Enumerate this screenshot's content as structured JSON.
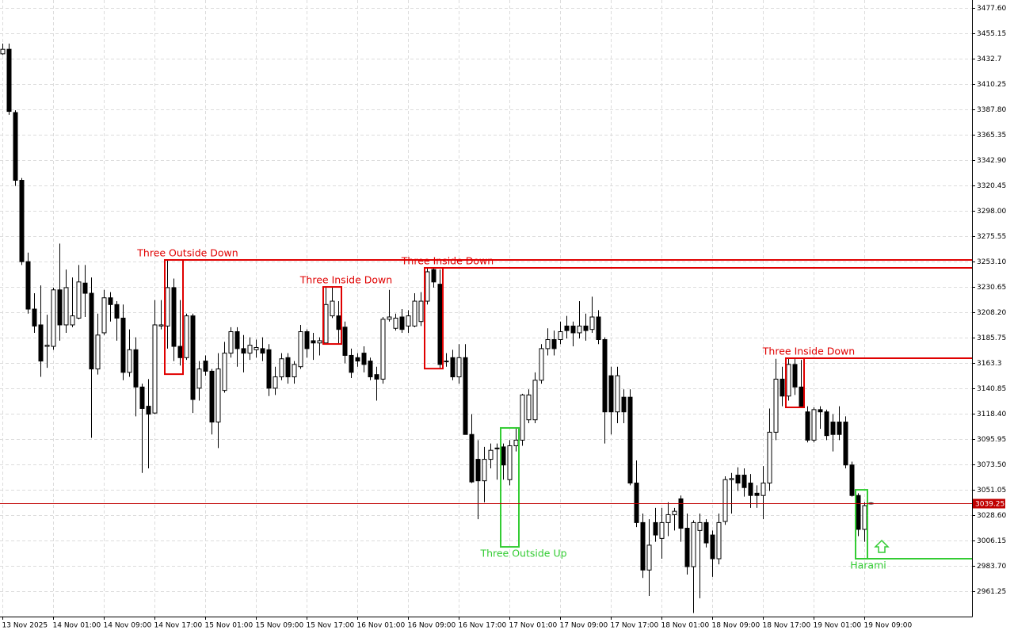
{
  "chart_data": {
    "type": "candlestick",
    "categories": [
      "13 Nov 2025",
      null,
      null,
      null,
      null,
      null,
      null,
      null,
      "14 Nov 01:00",
      null,
      null,
      null,
      null,
      null,
      null,
      null,
      "14 Nov 09:00",
      null,
      null,
      null,
      null,
      null,
      null,
      null,
      "14 Nov 17:00",
      null,
      null,
      null,
      null,
      null,
      null,
      null,
      "15 Nov 01:00",
      null,
      null,
      null,
      null,
      null,
      null,
      null,
      "15 Nov 09:00",
      null,
      null,
      null,
      null,
      null,
      null,
      null,
      "15 Nov 17:00",
      null,
      null,
      null,
      null,
      null,
      null,
      null,
      "16 Nov 01:00",
      null,
      null,
      null,
      null,
      null,
      null,
      null,
      "16 Nov 09:00",
      null,
      null,
      null,
      null,
      null,
      null,
      null,
      "16 Nov 17:00",
      null,
      null,
      null,
      null,
      null,
      null,
      null,
      "17 Nov 01:00",
      null,
      null,
      null,
      null,
      null,
      null,
      null,
      "17 Nov 09:00",
      null,
      null,
      null,
      null,
      null,
      null,
      null,
      "17 Nov 17:00",
      null,
      null,
      null,
      null,
      null,
      null,
      null,
      "18 Nov 01:00",
      null,
      null,
      null,
      null,
      null,
      null,
      null,
      "18 Nov 09:00",
      null,
      null,
      null,
      null,
      null,
      null,
      null,
      "18 Nov 17:00",
      null,
      null,
      null,
      null,
      null,
      null,
      null,
      "19 Nov 01:00",
      null,
      null,
      null,
      null,
      null,
      null,
      null,
      "19 Nov 09:00",
      null
    ],
    "open": [
      3437,
      3441,
      3385,
      3325,
      3253,
      3211,
      3197,
      3178,
      3178,
      3228,
      3197,
      3197,
      3203,
      3234,
      3225,
      3158,
      3190,
      3221,
      3215,
      3203,
      3155,
      3175,
      3142,
      3125,
      3119,
      3196,
      3196,
      3230,
      3178,
      3168,
      3205,
      3141,
      3165,
      3156,
      3111,
      3139,
      3172,
      3191,
      3176,
      3172,
      3175,
      3176,
      3175,
      3141,
      3151,
      3168,
      3151,
      3160,
      3191,
      3183,
      3181,
      3181,
      3205,
      3205,
      3195,
      3170,
      3168,
      3172,
      3165,
      3153,
      3149,
      3202,
      3194,
      3204,
      3196,
      3196,
      3200,
      3218,
      3246,
      3233,
      3165,
      3168,
      3151,
      3168,
      3100,
      3078,
      3059,
      3078,
      3088,
      3089,
      3060,
      3090,
      3095,
      3113,
      3113,
      3148,
      3176,
      3184,
      3184,
      3196,
      3196,
      3190,
      3196,
      3193,
      3204,
      3184,
      3152,
      3120,
      3133,
      3133,
      3057,
      3022,
      2980,
      3022,
      3008,
      3022,
      3029,
      3043,
      3017,
      2983,
      3015,
      3022,
      3011,
      2990,
      3023,
      3060,
      3064,
      3064,
      3057,
      3048,
      3046,
      3057,
      3102,
      3149,
      3134,
      3162,
      3142,
      3120,
      3095,
      3122,
      3120,
      3111,
      3111,
      3111,
      3073,
      3046,
      3016,
      3039
    ],
    "high": [
      3446,
      3446,
      3387,
      3327,
      3261,
      3225,
      3232,
      3206,
      3230,
      3269,
      3246,
      3239,
      3250,
      3250,
      3239,
      3207,
      3228,
      3226,
      3218,
      3215,
      3193,
      3186,
      3145,
      3149,
      3219,
      3219,
      3254,
      3238,
      3219,
      3207,
      3207,
      3165,
      3170,
      3158,
      3172,
      3182,
      3195,
      3195,
      3188,
      3186,
      3184,
      3186,
      3180,
      3160,
      3172,
      3172,
      3165,
      3197,
      3193,
      3190,
      3186,
      3230,
      3230,
      3218,
      3200,
      3176,
      3172,
      3178,
      3168,
      3160,
      3204,
      3228,
      3207,
      3211,
      3210,
      3225,
      3226,
      3247,
      3248,
      3246,
      3172,
      3175,
      3180,
      3180,
      3118,
      3095,
      3089,
      3092,
      3092,
      3092,
      3095,
      3106,
      3136,
      3140,
      3155,
      3180,
      3194,
      3192,
      3200,
      3205,
      3200,
      3218,
      3207,
      3222,
      3210,
      3186,
      3160,
      3160,
      3140,
      3140,
      3077,
      3030,
      3025,
      3035,
      3035,
      3040,
      3035,
      3046,
      3030,
      3024,
      3030,
      3025,
      3015,
      3030,
      3063,
      3066,
      3071,
      3070,
      3065,
      3055,
      3072,
      3123,
      3167,
      3160,
      3168,
      3168,
      3166,
      3125,
      3124,
      3125,
      3122,
      3118,
      3125,
      3116,
      3076,
      3048,
      3040,
      3040
    ],
    "low": [
      3436,
      3383,
      3320,
      3250,
      3207,
      3190,
      3151,
      3159,
      3175,
      3183,
      3190,
      3195,
      3202,
      3204,
      3097,
      3153,
      3188,
      3200,
      3183,
      3148,
      3151,
      3116,
      3066,
      3070,
      3118,
      3193,
      3176,
      3165,
      3161,
      3166,
      3119,
      3130,
      3152,
      3100,
      3088,
      3137,
      3168,
      3160,
      3155,
      3166,
      3168,
      3165,
      3134,
      3135,
      3148,
      3145,
      3145,
      3158,
      3168,
      3166,
      3170,
      3180,
      3203,
      3180,
      3163,
      3150,
      3160,
      3155,
      3148,
      3130,
      3145,
      3200,
      3192,
      3190,
      3190,
      3195,
      3196,
      3215,
      3230,
      3158,
      3160,
      3148,
      3145,
      3100,
      3057,
      3025,
      3040,
      3070,
      3060,
      3060,
      3055,
      3085,
      3090,
      3110,
      3110,
      3145,
      3170,
      3170,
      3180,
      3185,
      3178,
      3185,
      3183,
      3190,
      3180,
      3092,
      3100,
      3110,
      3110,
      3055,
      3018,
      2973,
      2957,
      3005,
      2990,
      3010,
      3015,
      3005,
      2976,
      2942,
      2955,
      3000,
      2974,
      2985,
      3020,
      3030,
      3050,
      3045,
      3035,
      3035,
      3025,
      3050,
      3095,
      3125,
      3130,
      3135,
      3124,
      3093,
      3093,
      3105,
      3095,
      3085,
      3095,
      3070,
      3045,
      3010,
      3005,
      3038
    ],
    "close": [
      3441,
      3386,
      3325,
      3253,
      3211,
      3196,
      3165,
      3179,
      3228,
      3197,
      3230,
      3205,
      3235,
      3225,
      3158,
      3188,
      3221,
      3215,
      3203,
      3155,
      3175,
      3142,
      3123,
      3118,
      3197,
      3197,
      3230,
      3178,
      3168,
      3205,
      3131,
      3158,
      3156,
      3111,
      3158,
      3172,
      3191,
      3176,
      3172,
      3179,
      3177,
      3172,
      3141,
      3151,
      3167,
      3151,
      3162,
      3191,
      3176,
      3181,
      3183,
      3215,
      3218,
      3193,
      3170,
      3155,
      3165,
      3162,
      3151,
      3149,
      3202,
      3204,
      3203,
      3193,
      3205,
      3218,
      3218,
      3244,
      3235,
      3162,
      3165,
      3151,
      3168,
      3100,
      3058,
      3059,
      3078,
      3086,
      3088,
      3073,
      3090,
      3095,
      3135,
      3135,
      3148,
      3176,
      3184,
      3176,
      3191,
      3192,
      3190,
      3196,
      3192,
      3204,
      3184,
      3120,
      3120,
      3152,
      3120,
      3057,
      3022,
      2980,
      3002,
      3011,
      3022,
      3029,
      3032,
      3017,
      2983,
      3022,
      3022,
      3004,
      2990,
      3022,
      3060,
      3061,
      3057,
      3053,
      3046,
      3046,
      3057,
      3102,
      3149,
      3134,
      3162,
      3142,
      3125,
      3095,
      3122,
      3120,
      3099,
      3100,
      3100,
      3073,
      3046,
      3016,
      3037,
      3039.25
    ],
    "ylim": [
      2938.8,
      3484.62
    ],
    "yticks": [
      {
        "value": 3477.6,
        "label": "3477.60"
      },
      3455.15,
      3432.7,
      3410.25,
      {
        "value": 3387.8,
        "label": "3387.80"
      },
      3365.35,
      {
        "value": 3342.9,
        "label": "3342.90"
      },
      3320.45,
      {
        "value": 3298,
        "label": "3298.00"
      },
      3275.55,
      {
        "value": 3253.1,
        "label": "3253.10"
      },
      3230.65,
      {
        "value": 3208.2,
        "label": "3208.20"
      },
      3185.75,
      3163.3,
      3140.85,
      {
        "value": 3118.4,
        "label": "3118.40"
      },
      3095.95,
      {
        "value": 3073.5,
        "label": "3073.50"
      },
      3051.05,
      {
        "value": 3028.6,
        "label": "3028.60"
      },
      3006.15,
      {
        "value": 2983.7,
        "label": "2983.70"
      },
      2961.25
    ],
    "grid": true,
    "last_price": 3039.25,
    "last_price_color": "#c00000",
    "bull_color": "#ffffff",
    "bear_color": "#000000",
    "patterns": [
      {
        "label": "Three Outside Down",
        "color": "#e00000",
        "from": 26,
        "to": 28,
        "high": 3254.5,
        "low": 3153.4,
        "level": 3254.5
      },
      {
        "label": "Three Inside Down",
        "color": "#e00000",
        "from": 51,
        "to": 53,
        "high": 3230.6,
        "low": 3180.1
      },
      {
        "label": "Three Inside Down",
        "color": "#e00000",
        "from": 67,
        "to": 69,
        "high": 3247.5,
        "low": 3158.3,
        "level": 3247.5
      },
      {
        "label": "Three Outside Up",
        "color": "#33cc33",
        "from": 79,
        "to": 81,
        "high": 3105.8,
        "low": 3000.5
      },
      {
        "label": "Three Inside Down",
        "color": "#e00000",
        "from": 124,
        "to": 126,
        "high": 3167.5,
        "low": 3124.0,
        "level": 3167.5
      },
      {
        "label": "Harami",
        "color": "#33cc33",
        "from": 135,
        "to": 136,
        "high": 3051.0,
        "low": 2990.0,
        "level": 2990.0,
        "arrow": "up"
      }
    ]
  }
}
